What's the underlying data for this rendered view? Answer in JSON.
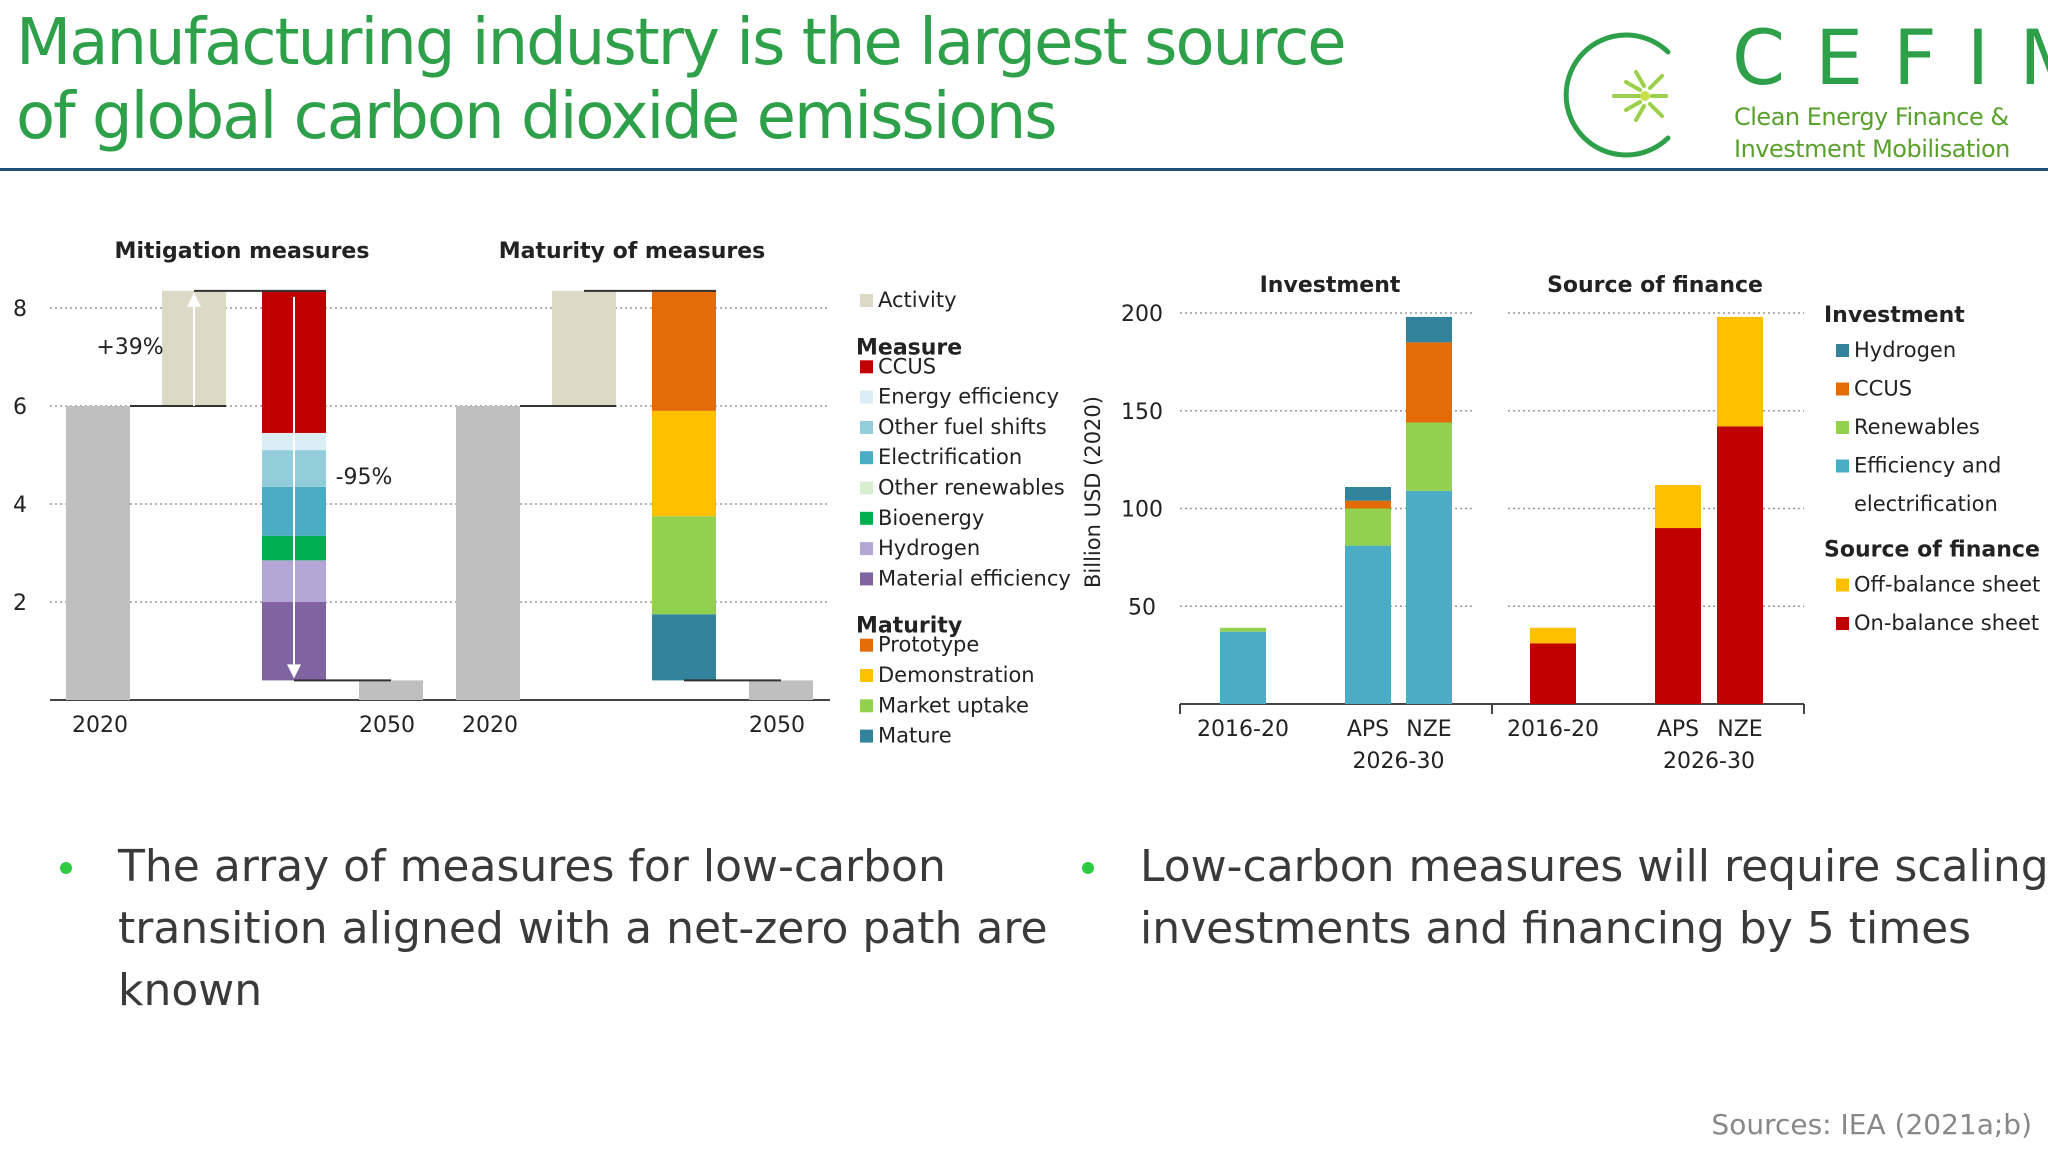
{
  "slide": {
    "title_line1": "Manufacturing industry is the largest source",
    "title_line2": "of global carbon dioxide emissions",
    "logo_word": "CEFIM",
    "logo_sub1": "Clean Energy Finance &",
    "logo_sub2": "Investment Mobilisation",
    "bullet_left": "The array of measures for low-carbon transition aligned with a net-zero path are known",
    "bullet_right": "Low-carbon measures will require scaling investments and financing by 5 times",
    "sources": "Sources: IEA (2021a;b)"
  },
  "colors": {
    "brand_green": "#2ea04a",
    "header_rule": "#1f4e79",
    "Activity": "#dcd9c6",
    "CCUS": "#c00000",
    "Energy efficiency": "#daeef3",
    "Other fuel shifts": "#92cddc",
    "Electrification": "#4bacc6",
    "Other renewables": "#d8eed0",
    "Bioenergy": "#00b050",
    "Hydrogen": "#b4a7d6",
    "Material efficiency": "#8064a2",
    "Prototype": "#e36c09",
    "Demonstration": "#ffc000",
    "Market uptake": "#92d050",
    "Mature": "#31849b",
    "Inv Hydrogen": "#31849b",
    "Inv CCUS": "#e36c09",
    "Renewables": "#92d050",
    "Efficiency and electrification": "#4bacc6",
    "Off-balance sheet": "#ffc000",
    "On-balance sheet": "#c00000",
    "Total": "#bfbfbf"
  },
  "chart_data": [
    {
      "id": "mitigation",
      "type": "bar",
      "subtype": "waterfall",
      "title": "Mitigation measures",
      "ylim": [
        0,
        8.4
      ],
      "yticks": [
        2,
        4,
        6,
        8
      ],
      "categories": [
        "2020",
        "2050"
      ],
      "bars": [
        {
          "x": "2020",
          "base": 0,
          "value": 6.0,
          "series": "Total"
        },
        {
          "x": "Activity",
          "base": 6.0,
          "value": 2.35,
          "series": "Activity"
        },
        {
          "x": "Measures",
          "base": 0.4,
          "value": 7.95,
          "segments": [
            {
              "series": "Material efficiency",
              "value": 1.6
            },
            {
              "series": "Hydrogen",
              "value": 0.85
            },
            {
              "series": "Bioenergy",
              "value": 0.5
            },
            {
              "series": "Electrification",
              "value": 1.0
            },
            {
              "series": "Other fuel shifts",
              "value": 0.75
            },
            {
              "series": "Energy efficiency",
              "value": 0.35
            },
            {
              "series": "CCUS",
              "value": 2.9
            }
          ]
        },
        {
          "x": "2050",
          "base": 0,
          "value": 0.4,
          "series": "Total"
        }
      ],
      "annotations": [
        "+39%",
        "-95%"
      ]
    },
    {
      "id": "maturity",
      "type": "bar",
      "subtype": "waterfall",
      "title": "Maturity of measures",
      "ylim": [
        0,
        8.4
      ],
      "categories": [
        "2020",
        "2050"
      ],
      "bars": [
        {
          "x": "2020",
          "base": 0,
          "value": 6.0,
          "series": "Total"
        },
        {
          "x": "Activity",
          "base": 6.0,
          "value": 2.35,
          "series": "Activity"
        },
        {
          "x": "Maturity",
          "base": 0.4,
          "value": 7.95,
          "segments": [
            {
              "series": "Mature",
              "value": 1.35
            },
            {
              "series": "Market uptake",
              "value": 2.0
            },
            {
              "series": "Demonstration",
              "value": 2.15
            },
            {
              "series": "Prototype",
              "value": 2.45
            }
          ]
        },
        {
          "x": "2050",
          "base": 0,
          "value": 0.4,
          "series": "Total"
        }
      ]
    },
    {
      "id": "legend-measures",
      "type": "legend",
      "groups": [
        {
          "heading": "",
          "items": [
            "Activity"
          ]
        },
        {
          "heading": "Measure",
          "items": [
            "CCUS",
            "Energy efficiency",
            "Other fuel shifts",
            "Electrification",
            "Other renewables",
            "Bioenergy",
            "Hydrogen",
            "Material efficiency"
          ]
        },
        {
          "heading": "Maturity",
          "items": [
            "Prototype",
            "Demonstration",
            "Market uptake",
            "Mature"
          ]
        }
      ]
    },
    {
      "id": "investment",
      "type": "bar",
      "subtype": "stacked",
      "title": "Investment",
      "ylabel": "Billion USD (2020)",
      "ylim": [
        0,
        200
      ],
      "yticks": [
        50,
        100,
        150,
        200
      ],
      "categories": [
        "2016-20",
        "APS",
        "NZE"
      ],
      "group_label": "2026-30",
      "series": [
        {
          "name": "Efficiency and electrification",
          "values": [
            37,
            81,
            109
          ]
        },
        {
          "name": "Renewables",
          "values": [
            2,
            19,
            35
          ]
        },
        {
          "name": "CCUS",
          "values": [
            0,
            4,
            41
          ]
        },
        {
          "name": "Hydrogen",
          "values": [
            0,
            7,
            13
          ]
        }
      ]
    },
    {
      "id": "finance",
      "type": "bar",
      "subtype": "stacked",
      "title": "Source of finance",
      "ylim": [
        0,
        200
      ],
      "categories": [
        "2016-20",
        "APS",
        "NZE"
      ],
      "group_label": "2026-30",
      "series": [
        {
          "name": "On-balance sheet",
          "values": [
            31,
            90,
            142
          ]
        },
        {
          "name": "Off-balance sheet",
          "values": [
            8,
            22,
            56
          ]
        }
      ]
    },
    {
      "id": "legend-investment",
      "type": "legend",
      "groups": [
        {
          "heading": "Investment",
          "items": [
            {
              "label": "Hydrogen",
              "color_key": "Inv Hydrogen"
            },
            {
              "label": "CCUS",
              "color_key": "Inv CCUS"
            },
            {
              "label": "Renewables",
              "color_key": "Renewables"
            },
            {
              "label": "Efficiency and",
              "label2": "electrification",
              "color_key": "Efficiency and electrification"
            }
          ]
        },
        {
          "heading": "Source of finance",
          "items": [
            {
              "label": "Off-balance sheet",
              "color_key": "Off-balance sheet"
            },
            {
              "label": "On-balance sheet",
              "color_key": "On-balance sheet"
            }
          ]
        }
      ]
    }
  ]
}
